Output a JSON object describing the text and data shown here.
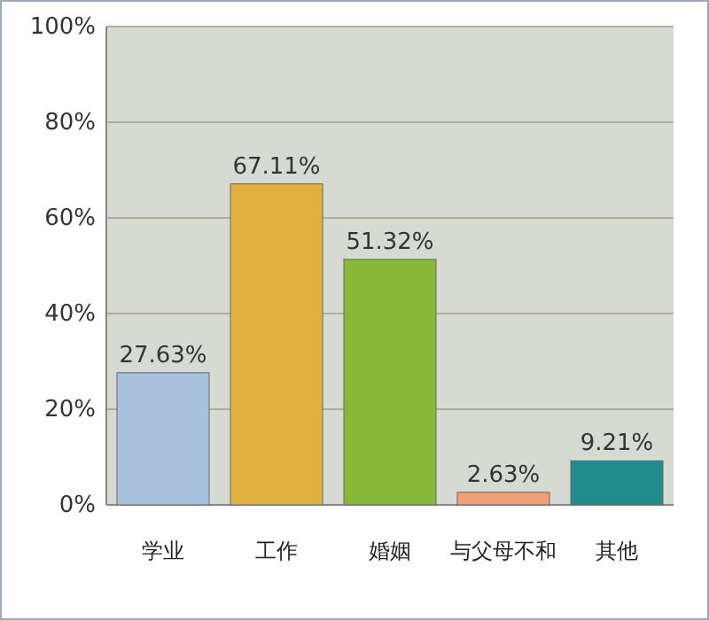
{
  "chart_data": {
    "type": "bar",
    "categories": [
      "学业",
      "工作",
      "婚姻",
      "与父母不和",
      "其他"
    ],
    "values": [
      27.63,
      67.11,
      51.32,
      2.63,
      9.21
    ],
    "colors": [
      "#a8c0dc",
      "#e0b040",
      "#88b838",
      "#f0a078",
      "#208c8c"
    ],
    "value_labels": [
      "27.63%",
      "67.11%",
      "51.32%",
      "2.63%",
      "9.21%"
    ],
    "ylim": [
      0,
      100
    ],
    "yticks": [
      {
        "value": 0,
        "label": "0%"
      },
      {
        "value": 20,
        "label": "20%"
      },
      {
        "value": 40,
        "label": "40%"
      },
      {
        "value": 60,
        "label": "60%"
      },
      {
        "value": 80,
        "label": "80%"
      },
      {
        "value": 100,
        "label": "100%"
      }
    ],
    "grid": "y"
  }
}
